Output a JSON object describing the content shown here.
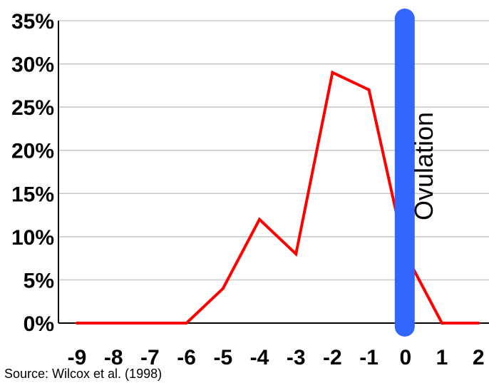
{
  "chart_data": {
    "type": "line",
    "x": [
      -9,
      -8,
      -7,
      -6,
      -5,
      -4,
      -3,
      -2,
      -1,
      0,
      1,
      2
    ],
    "x_tick_labels": [
      "-9",
      "-8",
      "-7",
      "-6",
      "-5",
      "-4",
      "-3",
      "-2",
      "-1",
      "0",
      "1",
      "2"
    ],
    "series": [
      {
        "values": [
          0,
          0,
          0,
          0,
          4,
          12,
          8,
          29,
          27,
          8,
          0,
          0
        ],
        "color": "#ff0000"
      }
    ],
    "ylim": [
      0,
      35
    ],
    "xlim": [
      -9,
      2
    ],
    "y_tick_values": [
      0,
      5,
      10,
      15,
      20,
      25,
      30,
      35
    ],
    "y_tick_labels": [
      "0%",
      "5%",
      "10%",
      "15%",
      "20%",
      "25%",
      "30%",
      "35%"
    ],
    "grid": "horizontal",
    "title": "",
    "xlabel": "",
    "ylabel": "",
    "annotation": {
      "label": "Ovulation",
      "x": 0,
      "color": "#3366ff"
    }
  },
  "source_text": "Source: Wilcox et al. (1998)"
}
